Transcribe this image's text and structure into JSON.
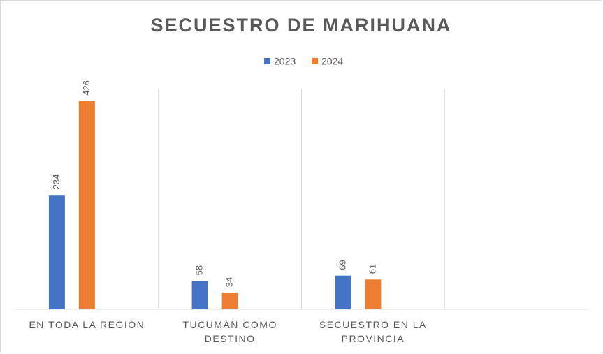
{
  "chart_data": {
    "type": "bar",
    "title": "SECUESTRO DE MARIHUANA",
    "categories": [
      "EN TODA LA REGIÓN",
      "TUCUMÁN COMO DESTINO",
      "SECUESTRO EN LA PROVINCIA",
      null
    ],
    "series": [
      {
        "name": "2023",
        "color": "#4472c4",
        "values": [
          234,
          58,
          69,
          null
        ]
      },
      {
        "name": "2024",
        "color": "#ed7d31",
        "values": [
          426,
          34,
          61,
          null
        ]
      }
    ],
    "ylim": [
      0,
      450
    ],
    "legend": "top"
  }
}
